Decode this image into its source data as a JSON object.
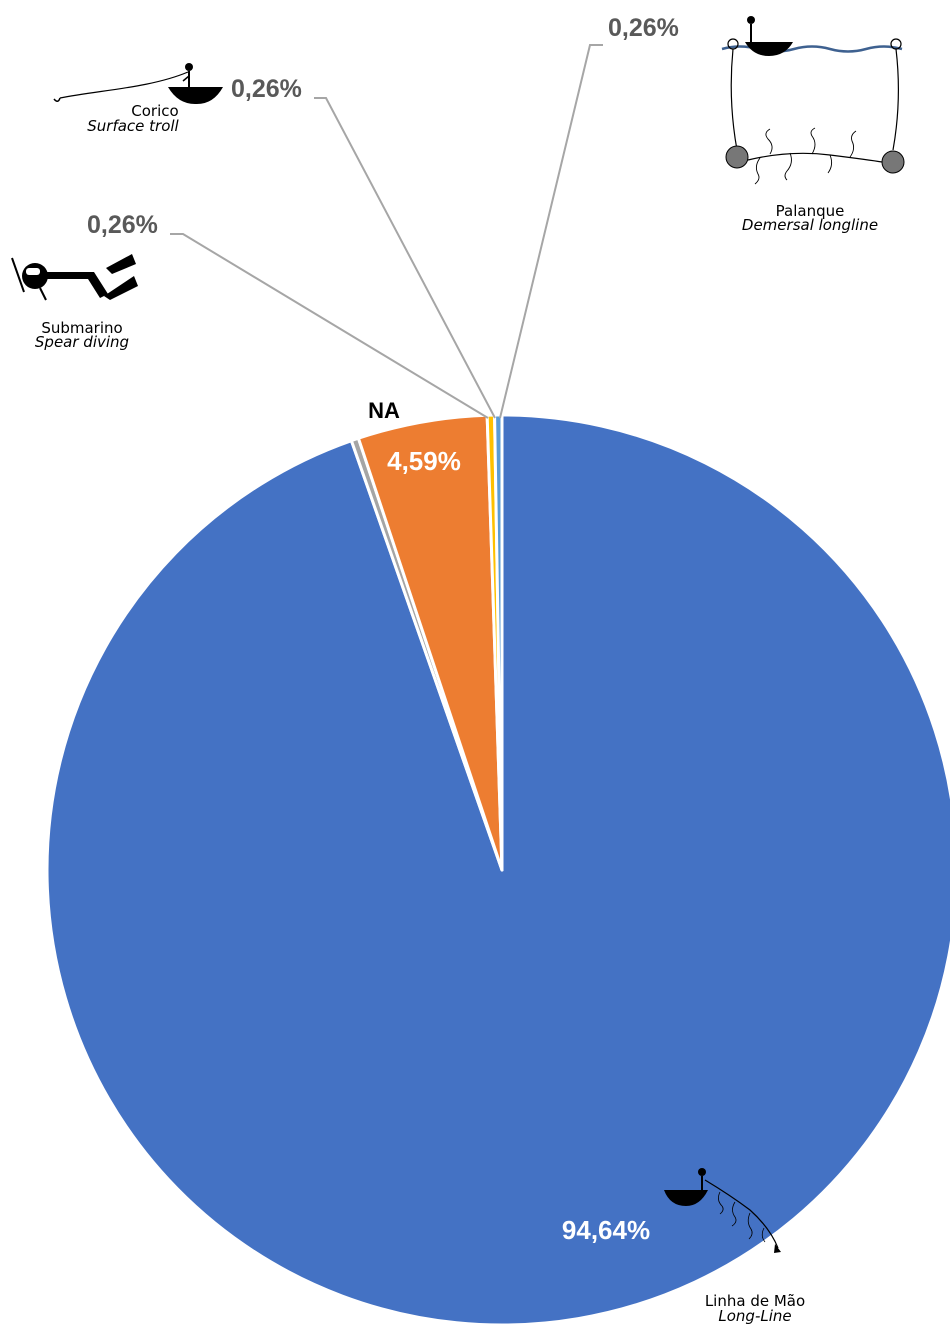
{
  "chart_data": {
    "type": "pie",
    "start_angle_deg": 0,
    "direction": "clockwise",
    "slices": [
      {
        "label": "Linha de Mão",
        "label_en": "Long-Line",
        "value": 94.64,
        "display": "94,64%",
        "color": "#4472c4",
        "icon": "hand-line-boat-icon"
      },
      {
        "label": "Submarino",
        "label_en": "Spear diving",
        "value": 0.26,
        "display": "0,26%",
        "color": "#a5a5a5",
        "icon": "spear-diver-icon"
      },
      {
        "label": "NA",
        "label_en": "",
        "value": 4.59,
        "display": "4,59%",
        "color": "#ed7d31",
        "icon": ""
      },
      {
        "label": "Corico",
        "label_en": "Surface troll",
        "value": 0.26,
        "display": "0,26%",
        "color": "#ffc000",
        "icon": "surface-troll-boat-icon"
      },
      {
        "label": "Palanque",
        "label_en": "Demersal longline",
        "value": 0.26,
        "display": "0,26%",
        "color": "#5b9bd5",
        "icon": "demersal-longline-icon"
      }
    ]
  }
}
